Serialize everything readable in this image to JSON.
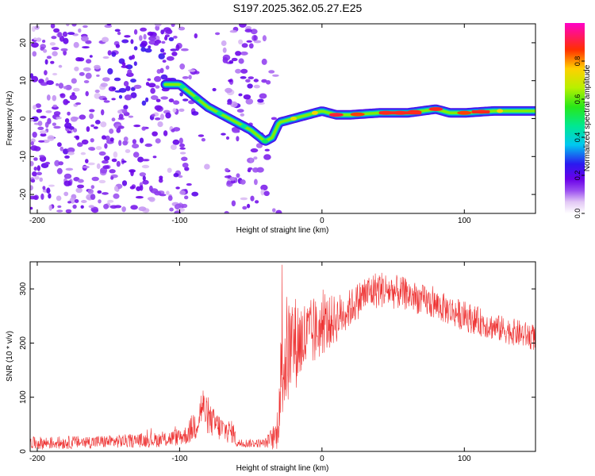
{
  "title": "S197.2025.362.05.27.E25",
  "chart_data": [
    {
      "type": "heatmap",
      "xlabel": "Height of straight line (km)",
      "ylabel": "Frequency (Hz)",
      "xlim": [
        -205,
        150
      ],
      "ylim": [
        -25,
        25
      ],
      "xticks": [
        -200,
        -100,
        0,
        100
      ],
      "yticks": [
        -20,
        -10,
        0,
        10,
        20
      ],
      "colorbar": {
        "label": "Normalized spectral amplitude",
        "range": [
          0,
          1
        ],
        "ticks": [
          "0.0",
          "0.2",
          "0.4",
          "0.6",
          "0.8"
        ],
        "tick_values": [
          0,
          0.2,
          0.4,
          0.6,
          0.8
        ]
      },
      "ridge": {
        "description": "dominant frequency track",
        "x": [
          -100,
          -90,
          -80,
          -70,
          -60,
          -50,
          -40,
          -35,
          -30,
          -20,
          -10,
          0,
          10,
          20,
          40,
          60,
          80,
          90,
          100,
          120,
          150
        ],
        "freq": [
          9,
          6,
          3,
          1,
          -1,
          -3,
          -6,
          -5,
          -1,
          0,
          1,
          2,
          1,
          1,
          1.5,
          1.5,
          2.5,
          1.5,
          1.5,
          2,
          2
        ]
      }
    },
    {
      "type": "line",
      "xlabel": "Height of straight line (km)",
      "ylabel": "SNR (10 * v/v)",
      "xlim": [
        -205,
        150
      ],
      "ylim": [
        0,
        350
      ],
      "xticks": [
        -200,
        -100,
        0,
        100
      ],
      "yticks": [
        0,
        100,
        200,
        300
      ],
      "color": "#ee3333",
      "envelope": {
        "x": [
          -205,
          -150,
          -110,
          -95,
          -88,
          -84,
          -80,
          -70,
          -62,
          -60,
          -40,
          -32,
          -30,
          -28,
          -25,
          -20,
          -10,
          0,
          10,
          20,
          30,
          40,
          60,
          80,
          100,
          120,
          150
        ],
        "mean": [
          15,
          18,
          22,
          30,
          55,
          85,
          60,
          40,
          35,
          15,
          15,
          30,
          90,
          160,
          180,
          200,
          210,
          230,
          245,
          265,
          290,
          300,
          290,
          270,
          250,
          230,
          210
        ],
        "amp": [
          12,
          12,
          14,
          18,
          35,
          40,
          30,
          25,
          20,
          8,
          8,
          30,
          70,
          110,
          110,
          90,
          70,
          55,
          45,
          35,
          35,
          35,
          30,
          28,
          28,
          25,
          25
        ]
      }
    }
  ]
}
